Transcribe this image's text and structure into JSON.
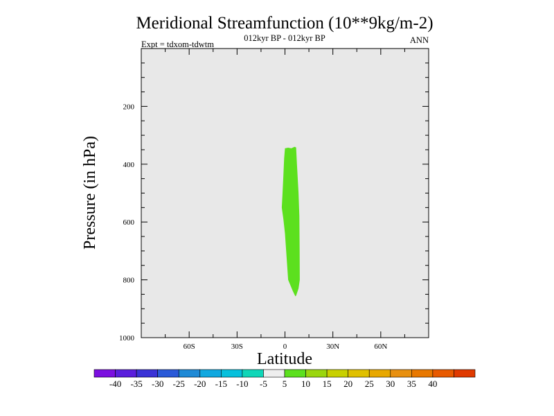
{
  "chart_data": {
    "type": "contour",
    "title": "Meridional Streamfunction (10**9kg/m-2)",
    "subtitle": "012kyr BP - 012kyr BP",
    "left_label": "Expt = tdxom-tdwtm",
    "right_label": "ANN",
    "xlabel": "Latitude",
    "ylabel": "Pressure (in hPa)",
    "xlim": [
      -90,
      90
    ],
    "ylim": [
      1000,
      0
    ],
    "x_ticks": [
      {
        "value": -60,
        "label": "60S"
      },
      {
        "value": -30,
        "label": "30S"
      },
      {
        "value": 0,
        "label": "0"
      },
      {
        "value": 30,
        "label": "30N"
      },
      {
        "value": 60,
        "label": "60N"
      }
    ],
    "y_ticks": [
      {
        "value": 200,
        "label": "200"
      },
      {
        "value": 400,
        "label": "400"
      },
      {
        "value": 600,
        "label": "600"
      },
      {
        "value": 800,
        "label": "800"
      },
      {
        "value": 1000,
        "label": "1000"
      }
    ],
    "background_color": "#e8e8e8",
    "filled_region": {
      "level": "5 to 10",
      "color": "#5ce01e",
      "outline": [
        [
          0,
          345
        ],
        [
          2,
          343
        ],
        [
          4,
          345
        ],
        [
          6,
          340
        ],
        [
          7,
          342
        ],
        [
          7.5,
          400
        ],
        [
          8.5,
          500
        ],
        [
          9,
          580
        ],
        [
          9.2,
          700
        ],
        [
          9.3,
          800
        ],
        [
          8.5,
          830
        ],
        [
          7,
          855
        ],
        [
          6.5,
          857
        ],
        [
          5,
          840
        ],
        [
          2,
          800
        ],
        [
          1,
          720
        ],
        [
          0,
          640
        ],
        [
          -1,
          590
        ],
        [
          -2,
          550
        ],
        [
          -1.5,
          500
        ],
        [
          -1,
          440
        ],
        [
          -0.5,
          380
        ]
      ]
    },
    "colorbar": {
      "colors": [
        "#7b0fe0",
        "#5a1edc",
        "#3a32d6",
        "#2a5ad8",
        "#1f8ad6",
        "#10a8e0",
        "#06c0dc",
        "#10d6b8",
        "#eeeeee",
        "#5ce01e",
        "#9ad60e",
        "#c8d000",
        "#e0c000",
        "#e8a800",
        "#e89010",
        "#e87800",
        "#e85a00",
        "#e03a00"
      ],
      "labels": [
        "-40",
        "-35",
        "-30",
        "-25",
        "-20",
        "-15",
        "-10",
        "-5",
        "5",
        "10",
        "15",
        "20",
        "25",
        "30",
        "35",
        "40"
      ]
    }
  }
}
